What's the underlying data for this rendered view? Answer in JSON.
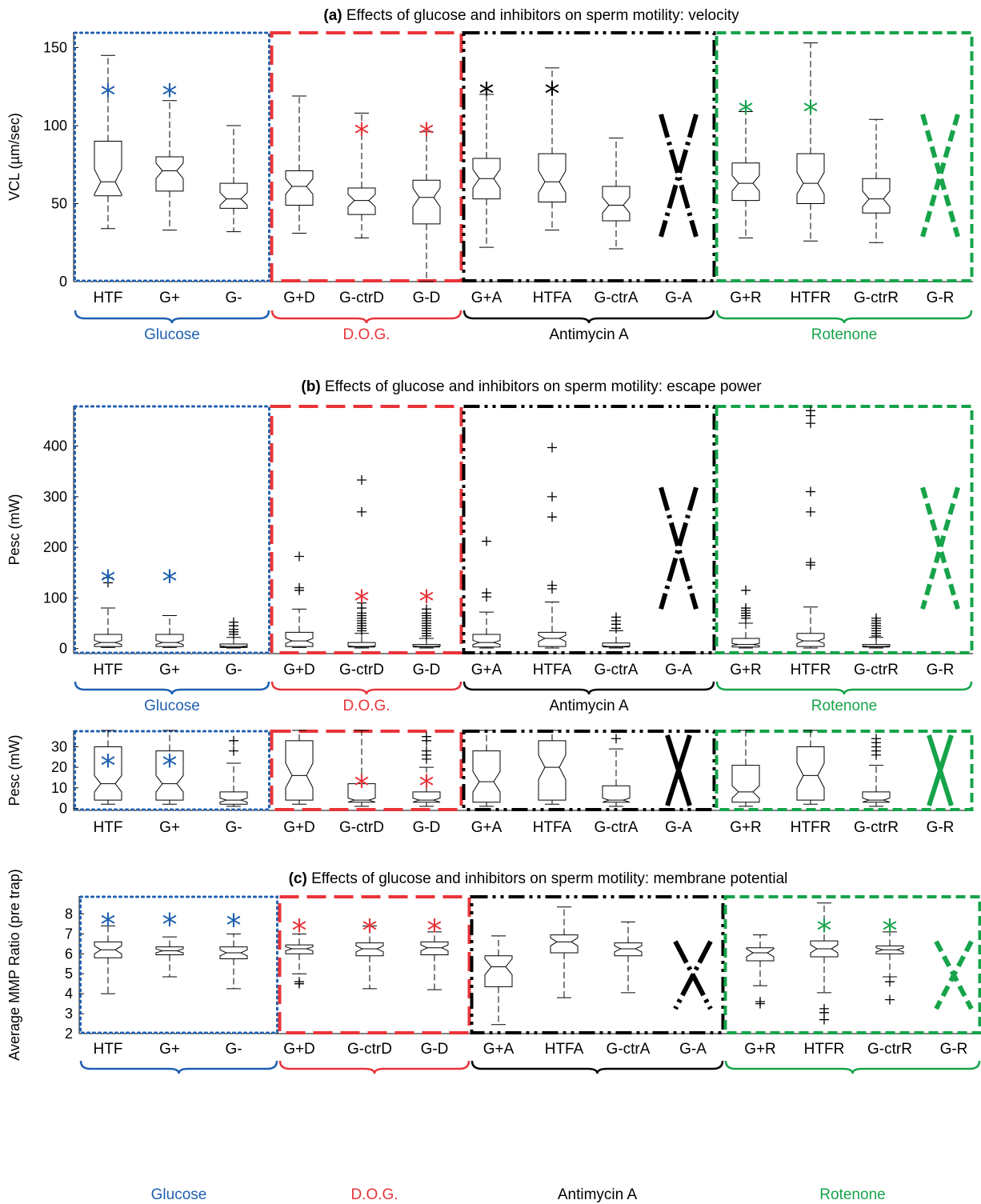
{
  "colors": {
    "glucose": "#1f5fb0",
    "dog": "#e8343a",
    "antimycin": "#000000",
    "rotenone": "#16a34a",
    "axis": "#000000"
  },
  "group_labels": [
    "Glucose",
    "D.O.G.",
    "Antimycin A",
    "Rotenone"
  ],
  "chart_data": [
    {
      "type": "box",
      "panel_letter": "(a)",
      "title": "Effects of glucose and inhibitors on sperm motility: velocity",
      "ylabel": "VCL (µm/sec)",
      "ylim": [
        0,
        160
      ],
      "yticks": [
        0,
        50,
        100,
        150
      ],
      "categories": [
        "HTF",
        "G+",
        "G-",
        "G+D",
        "G-ctrD",
        "G-D",
        "G+A",
        "HTFA",
        "G-ctrA",
        "G-A",
        "G+R",
        "HTFR",
        "G-ctrR",
        "G-R"
      ],
      "boxes": [
        {
          "wlo": 34,
          "q1": 55,
          "med": 64,
          "q3": 90,
          "whi": 145,
          "notch": [
            56,
            72
          ],
          "out": [],
          "star": 125
        },
        {
          "wlo": 33,
          "q1": 58,
          "med": 71,
          "q3": 80,
          "whi": 116,
          "notch": [
            66,
            76
          ],
          "out": [],
          "star": 125
        },
        {
          "wlo": 32,
          "q1": 47,
          "med": 53,
          "q3": 63,
          "whi": 100,
          "notch": [
            49,
            57
          ],
          "out": [],
          "star": null
        },
        {
          "wlo": 31,
          "q1": 49,
          "med": 61,
          "q3": 71,
          "whi": 119,
          "notch": [
            56,
            66
          ],
          "out": [],
          "star": null
        },
        {
          "wlo": 28,
          "q1": 43,
          "med": 52,
          "q3": 60,
          "whi": 108,
          "notch": [
            48,
            56
          ],
          "out": [],
          "star": 100
        },
        {
          "wlo": 0,
          "q1": 37,
          "med": 54,
          "q3": 65,
          "whi": 96,
          "notch": [
            48,
            60
          ],
          "out": [],
          "star": 100
        },
        {
          "wlo": 22,
          "q1": 53,
          "med": 66,
          "q3": 79,
          "whi": 120,
          "notch": [
            60,
            72
          ],
          "out": [],
          "star": 126
        },
        {
          "wlo": 33,
          "q1": 51,
          "med": 64,
          "q3": 82,
          "whi": 137,
          "notch": [
            57,
            71
          ],
          "out": [],
          "star": 126
        },
        {
          "wlo": 21,
          "q1": 39,
          "med": 49,
          "q3": 61,
          "whi": 92,
          "notch": [
            44,
            54
          ],
          "out": [],
          "star": null
        },
        null,
        {
          "wlo": 28,
          "q1": 52,
          "med": 63,
          "q3": 76,
          "whi": 109,
          "notch": [
            58,
            68
          ],
          "out": [],
          "star": 114
        },
        {
          "wlo": 26,
          "q1": 50,
          "med": 63,
          "q3": 82,
          "whi": 153,
          "notch": [
            56,
            70
          ],
          "out": [],
          "star": 114
        },
        {
          "wlo": 25,
          "q1": 44,
          "med": 53,
          "q3": 66,
          "whi": 104,
          "notch": [
            48,
            58
          ],
          "out": [],
          "star": null
        },
        null
      ]
    },
    {
      "type": "box",
      "panel_letter": "(b)",
      "title": "Effects of glucose and inhibitors on sperm motility: escape power",
      "ylabel": "Pesc (mW)",
      "ylim": [
        -10,
        480
      ],
      "yticks": [
        0,
        100,
        200,
        300,
        400
      ],
      "categories": [
        "HTF",
        "G+",
        "G-",
        "G+D",
        "G-ctrD",
        "G-D",
        "G+A",
        "HTFA",
        "G-ctrA",
        "G-A",
        "G+R",
        "HTFR",
        "G-ctrR",
        "G-R"
      ],
      "boxes": [
        {
          "wlo": 2,
          "q1": 4,
          "med": 12,
          "q3": 28,
          "whi": 80,
          "notch": [
            8,
            16
          ],
          "out": [
            130,
            140
          ],
          "star": 150
        },
        {
          "wlo": 2,
          "q1": 4,
          "med": 12,
          "q3": 28,
          "whi": 65,
          "notch": [
            8,
            16
          ],
          "out": [],
          "star": 150
        },
        {
          "wlo": 1,
          "q1": 2,
          "med": 4,
          "q3": 9,
          "whi": 22,
          "notch": [
            3,
            5
          ],
          "out": [
            28,
            33,
            38,
            45,
            52
          ],
          "star": null
        },
        {
          "wlo": 2,
          "q1": 4,
          "med": 15,
          "q3": 32,
          "whi": 78,
          "notch": [
            10,
            20
          ],
          "out": [
            115,
            120,
            182
          ],
          "star": null
        },
        {
          "wlo": 1,
          "q1": 3,
          "med": 4,
          "q3": 12,
          "whi": 30,
          "notch": [
            3,
            5
          ],
          "out": [
            35,
            40,
            45,
            50,
            55,
            60,
            65,
            70,
            80,
            90,
            270,
            333
          ],
          "star": 110
        },
        {
          "wlo": 1,
          "q1": 3,
          "med": 4,
          "q3": 8,
          "whi": 20,
          "notch": [
            3,
            5
          ],
          "out": [
            25,
            30,
            35,
            40,
            45,
            50,
            55,
            60,
            65,
            70,
            78
          ],
          "star": 110
        },
        {
          "wlo": 1,
          "q1": 3,
          "med": 12,
          "q3": 28,
          "whi": 72,
          "notch": [
            8,
            16
          ],
          "out": [
            102,
            110,
            212
          ],
          "star": null
        },
        {
          "wlo": 1,
          "q1": 4,
          "med": 20,
          "q3": 32,
          "whi": 92,
          "notch": [
            14,
            26
          ],
          "out": [
            118,
            125,
            260,
            300,
            397
          ],
          "star": null
        },
        {
          "wlo": 1,
          "q1": 3,
          "med": 4,
          "q3": 11,
          "whi": 35,
          "notch": [
            3,
            5
          ],
          "out": [
            40,
            48,
            55,
            62
          ],
          "star": null
        },
        null,
        {
          "wlo": 1,
          "q1": 3,
          "med": 8,
          "q3": 20,
          "whi": 50,
          "notch": [
            6,
            10
          ],
          "out": [
            60,
            65,
            70,
            75,
            80,
            115
          ],
          "star": null
        },
        {
          "wlo": 1,
          "q1": 4,
          "med": 15,
          "q3": 30,
          "whi": 82,
          "notch": [
            10,
            20
          ],
          "out": [
            165,
            170,
            270,
            310,
            445,
            460,
            470
          ],
          "star": null
        },
        {
          "wlo": 1,
          "q1": 3,
          "med": 4,
          "q3": 8,
          "whi": 22,
          "notch": [
            3,
            5
          ],
          "out": [
            25,
            30,
            35,
            40,
            45,
            50,
            55,
            60
          ],
          "star": null
        },
        null
      ]
    },
    {
      "type": "box",
      "panel_letter": "",
      "title": "",
      "ylabel": "Pesc (mW)",
      "ylim": [
        -1,
        38
      ],
      "yticks": [
        0,
        10,
        20,
        30
      ],
      "categories": [
        "HTF",
        "G+",
        "G-",
        "G+D",
        "G-ctrD",
        "G-D",
        "G+A",
        "HTFA",
        "G-ctrA",
        "G-A",
        "G+R",
        "HTFR",
        "G-ctrR",
        "G-R"
      ],
      "boxes": [
        {
          "wlo": 2,
          "q1": 4,
          "med": 12,
          "q3": 30,
          "whi": 38,
          "notch": [
            8,
            16
          ],
          "out": [],
          "star": 25
        },
        {
          "wlo": 2,
          "q1": 4,
          "med": 12,
          "q3": 28,
          "whi": 38,
          "notch": [
            8,
            16
          ],
          "out": [],
          "star": 25
        },
        {
          "wlo": 1,
          "q1": 2,
          "med": 4,
          "q3": 8,
          "whi": 22,
          "notch": [
            3,
            5
          ],
          "out": [
            28,
            33
          ],
          "star": null
        },
        {
          "wlo": 2,
          "q1": 4,
          "med": 16,
          "q3": 33,
          "whi": 38,
          "notch": [
            10,
            22
          ],
          "out": [],
          "star": null
        },
        {
          "wlo": 1,
          "q1": 3,
          "med": 4,
          "q3": 12,
          "whi": 38,
          "notch": [
            3,
            5
          ],
          "out": [],
          "star": 15
        },
        {
          "wlo": 1,
          "q1": 3,
          "med": 4,
          "q3": 8,
          "whi": 20,
          "notch": [
            3,
            5
          ],
          "out": [
            24,
            26,
            28,
            33,
            35
          ],
          "star": 15
        },
        {
          "wlo": 1,
          "q1": 3,
          "med": 13,
          "q3": 28,
          "whi": 38,
          "notch": [
            8,
            18
          ],
          "out": [],
          "star": null
        },
        {
          "wlo": 2,
          "q1": 4,
          "med": 20,
          "q3": 33,
          "whi": 38,
          "notch": [
            14,
            26
          ],
          "out": [],
          "star": null
        },
        {
          "wlo": 1,
          "q1": 3,
          "med": 4,
          "q3": 11,
          "whi": 29,
          "notch": [
            3,
            5
          ],
          "out": [
            34
          ],
          "star": null
        },
        null,
        {
          "wlo": 1,
          "q1": 3,
          "med": 8,
          "q3": 21,
          "whi": 38,
          "notch": [
            5,
            11
          ],
          "out": [],
          "star": null
        },
        {
          "wlo": 2,
          "q1": 4,
          "med": 16,
          "q3": 30,
          "whi": 38,
          "notch": [
            10,
            22
          ],
          "out": [],
          "star": null
        },
        {
          "wlo": 1,
          "q1": 3,
          "med": 4,
          "q3": 8,
          "whi": 21,
          "notch": [
            3,
            5
          ],
          "out": [
            26,
            28,
            30,
            32,
            34
          ],
          "star": null
        },
        null
      ]
    },
    {
      "type": "box",
      "panel_letter": "(c)",
      "title": "Effects of glucose and inhibitors on sperm motility: membrane potential",
      "ylabel": "Average MMP Ratio (pre trap)",
      "ylim": [
        2,
        8.9
      ],
      "yticks": [
        2,
        3,
        4,
        5,
        6,
        7,
        8
      ],
      "categories": [
        "HTF",
        "G+",
        "G-",
        "G+D",
        "G-ctrD",
        "G-D",
        "G+A",
        "HTFA",
        "G-ctrA",
        "G-A",
        "G+R",
        "HTFR",
        "G-ctrR",
        "G-R"
      ],
      "boxes": [
        {
          "wlo": 4.0,
          "q1": 5.8,
          "med": 6.2,
          "q3": 6.6,
          "whi": 7.4,
          "notch": [
            6.0,
            6.4
          ],
          "out": [],
          "star": 7.9
        },
        {
          "wlo": 4.85,
          "q1": 5.95,
          "med": 6.15,
          "q3": 6.35,
          "whi": 6.85,
          "notch": [
            6.05,
            6.25
          ],
          "out": [],
          "star": 7.9
        },
        {
          "wlo": 4.25,
          "q1": 5.75,
          "med": 6.05,
          "q3": 6.35,
          "whi": 7.0,
          "notch": [
            5.9,
            6.2
          ],
          "out": [],
          "star": 7.85
        },
        {
          "wlo": 5.0,
          "q1": 6.0,
          "med": 6.25,
          "q3": 6.45,
          "whi": 7.0,
          "notch": [
            6.15,
            6.35
          ],
          "out": [
            4.5,
            4.6
          ],
          "star": 7.6
        },
        {
          "wlo": 4.25,
          "q1": 5.9,
          "med": 6.25,
          "q3": 6.55,
          "whi": 7.4,
          "notch": [
            6.1,
            6.4
          ],
          "out": [],
          "star": 7.6
        },
        {
          "wlo": 4.2,
          "q1": 5.95,
          "med": 6.3,
          "q3": 6.6,
          "whi": 7.1,
          "notch": [
            6.15,
            6.45
          ],
          "out": [],
          "star": 7.6
        },
        {
          "wlo": 2.45,
          "q1": 4.35,
          "med": 5.35,
          "q3": 5.9,
          "whi": 6.9,
          "notch": [
            4.95,
            5.75
          ],
          "out": [],
          "star": null
        },
        {
          "wlo": 3.8,
          "q1": 6.05,
          "med": 6.6,
          "q3": 6.95,
          "whi": 8.35,
          "notch": [
            6.4,
            6.8
          ],
          "out": [],
          "star": null
        },
        {
          "wlo": 4.05,
          "q1": 5.9,
          "med": 6.25,
          "q3": 6.55,
          "whi": 7.6,
          "notch": [
            6.1,
            6.4
          ],
          "out": [],
          "star": null
        },
        null,
        {
          "wlo": 4.4,
          "q1": 5.65,
          "med": 6.05,
          "q3": 6.3,
          "whi": 6.95,
          "notch": [
            5.85,
            6.25
          ],
          "out": [
            3.5,
            3.6
          ],
          "star": null
        },
        {
          "wlo": 4.05,
          "q1": 5.85,
          "med": 6.25,
          "q3": 6.65,
          "whi": 8.55,
          "notch": [
            6.05,
            6.45
          ],
          "out": [
            2.7,
            3.05,
            3.25
          ],
          "star": 7.6
        },
        {
          "wlo": 4.85,
          "q1": 6.0,
          "med": 6.2,
          "q3": 6.4,
          "whi": 7.1,
          "notch": [
            6.1,
            6.3
          ],
          "out": [
            3.7,
            4.6
          ],
          "star": 7.6
        },
        null
      ]
    }
  ]
}
